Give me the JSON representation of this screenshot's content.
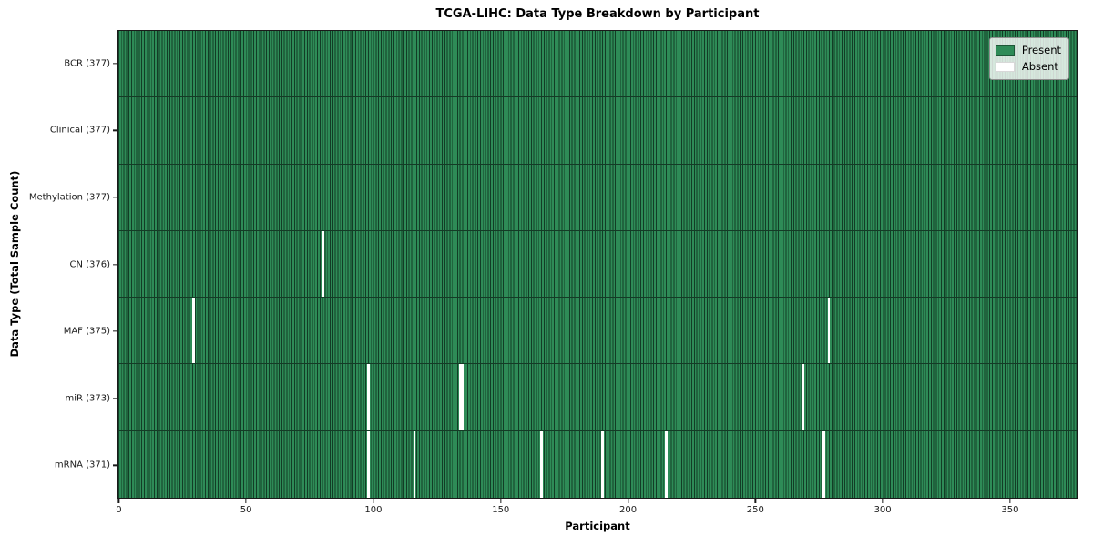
{
  "chart": {
    "title": "TCGA-LIHC: Data Type Breakdown by Participant",
    "xlabel": "Participant",
    "ylabel": "Data Type (Total Sample Count)"
  },
  "legend": {
    "present_label": "Present",
    "absent_label": "Absent"
  },
  "chart_data": {
    "type": "heatmap",
    "title": "TCGA-LIHC: Data Type Breakdown by Participant",
    "xlabel": "Participant",
    "ylabel": "Data Type (Total Sample Count)",
    "n_participants": 377,
    "x_axis": {
      "min": -0.5,
      "max": 376.5,
      "ticks": [
        0,
        50,
        100,
        150,
        200,
        250,
        300,
        350
      ]
    },
    "legend_position": "upper right",
    "grid": false,
    "colors": {
      "present": "#2e8b57",
      "present_edge": "#123d26",
      "row_line": "#143b26",
      "absent": "#ffffff"
    },
    "series": [
      {
        "name": "BCR",
        "label": "BCR (377)",
        "total": 377,
        "missing_participants": []
      },
      {
        "name": "Clinical",
        "label": "Clinical (377)",
        "total": 377,
        "missing_participants": []
      },
      {
        "name": "Methylation",
        "label": "Methylation (377)",
        "total": 377,
        "missing_participants": []
      },
      {
        "name": "CN",
        "label": "CN (376)",
        "total": 376,
        "missing_participants": [
          80
        ]
      },
      {
        "name": "MAF",
        "label": "MAF (375)",
        "total": 375,
        "missing_participants": [
          29,
          279
        ]
      },
      {
        "name": "miR",
        "label": "miR (373)",
        "total": 373,
        "missing_participants": [
          98,
          134,
          135,
          269
        ]
      },
      {
        "name": "mRNA",
        "label": "mRNA (371)",
        "total": 371,
        "missing_participants": [
          98,
          116,
          166,
          190,
          215,
          277
        ]
      }
    ]
  }
}
